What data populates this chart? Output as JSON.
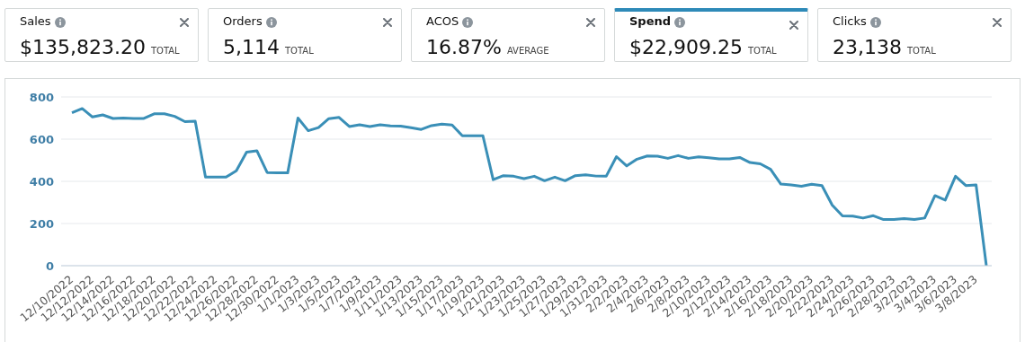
{
  "chart_data": [
    {
      "type": "other",
      "annotations": [
        "Sales",
        "$135,823.20",
        "TOTAL",
        "Orders",
        "5,114",
        "TOTAL",
        "ACOS",
        "16.87%",
        "AVERAGE",
        "Spend",
        "$22,909.25",
        "TOTAL",
        "Clicks",
        "23,138",
        "TOTAL"
      ]
    },
    {
      "type": "line",
      "categories": [
        "12/10/2022",
        null,
        "12/12/2022",
        null,
        "12/14/2022",
        null,
        "12/16/2022",
        null,
        "12/18/2022",
        null,
        "12/20/2022",
        null,
        "12/22/2022",
        null,
        "12/24/2022",
        null,
        "12/26/2022",
        null,
        "12/28/2022",
        null,
        "12/30/2022",
        null,
        "1/1/2023",
        null,
        "1/3/2023",
        null,
        "1/5/2023",
        null,
        "1/7/2023",
        null,
        "1/9/2023",
        null,
        "1/11/2023",
        null,
        "1/13/2023",
        null,
        "1/15/2023",
        null,
        "1/17/2023",
        null,
        "1/19/2023",
        null,
        "1/21/2023",
        null,
        "1/23/2023",
        null,
        "1/25/2023",
        null,
        "1/27/2023",
        null,
        "1/29/2023",
        null,
        "1/31/2023",
        null,
        "2/2/2023",
        null,
        "2/4/2023",
        null,
        "2/6/2023",
        null,
        "2/8/2023",
        null,
        "2/10/2023",
        null,
        "2/12/2023",
        null,
        "2/14/2023",
        null,
        "2/16/2023",
        null,
        "2/18/2023",
        null,
        "2/20/2023",
        null,
        "2/22/2023",
        null,
        "2/24/2023",
        null,
        "2/26/2023",
        null,
        "2/28/2023",
        null,
        "3/2/2023",
        null,
        "3/4/2023",
        null,
        "3/6/2023",
        null,
        "3/8/2023",
        null
      ],
      "series": [
        {
          "color": "#3a8fb7",
          "values": [
            725,
            745,
            705,
            715,
            698,
            700,
            698,
            698,
            720,
            720,
            708,
            683,
            685,
            420,
            420,
            420,
            450,
            538,
            545,
            442,
            440,
            440,
            700,
            640,
            655,
            697,
            703,
            660,
            668,
            660,
            668,
            663,
            662,
            654,
            646,
            664,
            671,
            667,
            616,
            616,
            616,
            408,
            427,
            424,
            413,
            424,
            403,
            420,
            403,
            427,
            431,
            425,
            424,
            517,
            473,
            505,
            520,
            519,
            509,
            522,
            509,
            516,
            512,
            506,
            506,
            513,
            489,
            483,
            457,
            387,
            383,
            377,
            386,
            380,
            287,
            236,
            235,
            226,
            237,
            219,
            219,
            223,
            219,
            226,
            332,
            311,
            424,
            380,
            383,
            0
          ]
        }
      ],
      "ylim": [
        0,
        800
      ],
      "yticks": [
        0,
        200,
        400,
        600,
        800
      ],
      "grid": "y"
    }
  ]
}
